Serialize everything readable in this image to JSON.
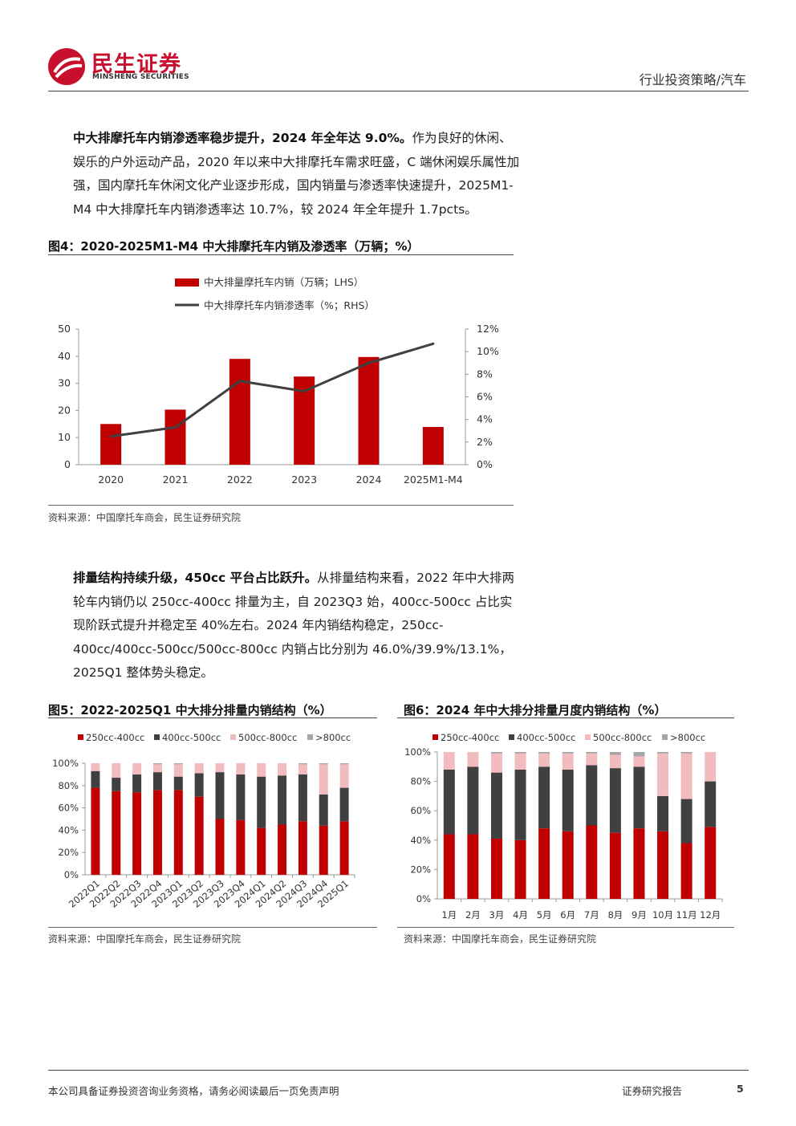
{
  "header": {
    "logo_cn": "民生证券",
    "logo_en": "MINSHENG SECURITIES",
    "category": "行业投资策略/汽车"
  },
  "para1": {
    "bold": "中大排摩托车内销渗透率稳步提升，2024 年全年达 9.0%。",
    "text": "作为良好的休闲、娱乐的户外运动产品，2020 年以来中大排摩托车需求旺盛，C 端休闲娱乐属性加强，国内摩托车休闲文化产业逐步形成，国内销量与渗透率快速提升，2025M1-M4 中大排摩托车内销渗透率达 10.7%，较 2024 年全年提升 1.7pcts。"
  },
  "fig4": {
    "title": "图4：2020-2025M1-M4 中大排摩托车内销及渗透率（万辆；%）",
    "source": "资料来源：中国摩托车商会，民生证券研究院"
  },
  "para2": {
    "bold": "排量结构持续升级，450cc 平台占比跃升。",
    "text": "从排量结构来看，2022 年中大排两轮车内销仍以 250cc-400cc 排量为主，自 2023Q3 始，400cc-500cc 占比实现阶跃式提升并稳定至 40%左右。2024 年内销结构稳定，250cc-400cc/400cc-500cc/500cc-800cc 内销占比分别为 46.0%/39.9%/13.1%，2025Q1 整体势头稳定。"
  },
  "fig5": {
    "title": "图5：2022-2025Q1 中大排分排量内销结构（%）",
    "source": "资料来源：中国摩托车商会，民生证券研究院"
  },
  "fig6": {
    "title": "图6：2024 年中大排分排量月度内销结构（%）",
    "source": "资料来源：中国摩托车商会，民生证券研究院"
  },
  "footer": {
    "disclaimer": "本公司具备证券投资咨询业务资格，请务必阅读最后一页免责声明",
    "report_type": "证券研究报告",
    "page": "5"
  },
  "colors": {
    "red": "#c00000",
    "dark": "#404040",
    "pink": "#f2bcbf",
    "gray": "#a6a6a6",
    "line": "#404040"
  },
  "chart_data": [
    {
      "id": "fig4",
      "type": "bar",
      "categories": [
        "2020",
        "2021",
        "2022",
        "2023",
        "2024",
        "2025M1-M4"
      ],
      "series": [
        {
          "name": "中大排量摩托车内销（万辆；LHS）",
          "type": "bar",
          "axis": "left",
          "values": [
            15,
            20.3,
            39,
            32.5,
            39.7,
            13.9
          ]
        },
        {
          "name": "中大排摩托车内销渗透率（%；RHS）",
          "type": "line",
          "axis": "right",
          "values": [
            2.5,
            3.3,
            7.4,
            6.5,
            9.0,
            10.7
          ]
        }
      ],
      "yticks_left": [
        "0",
        "10",
        "20",
        "30",
        "40",
        "50"
      ],
      "yticks_right": [
        "0%",
        "2%",
        "4%",
        "6%",
        "8%",
        "10%",
        "12%"
      ],
      "ylim_left": [
        0,
        50
      ],
      "ylim_right": [
        0,
        12
      ],
      "legend_position": "top-center"
    },
    {
      "id": "fig5",
      "type": "bar",
      "stacked": true,
      "categories": [
        "2022Q1",
        "2022Q2",
        "2022Q3",
        "2022Q4",
        "2023Q1",
        "2023Q2",
        "2023Q3",
        "2023Q4",
        "2024Q1",
        "2024Q2",
        "2024Q3",
        "2024Q4",
        "2025Q1"
      ],
      "series": [
        {
          "name": "250cc-400cc",
          "values": [
            78,
            75,
            74,
            76,
            76,
            70,
            50,
            49,
            42,
            45,
            48,
            44,
            48
          ]
        },
        {
          "name": "400cc-500cc",
          "values": [
            15,
            12,
            16,
            16,
            12,
            21,
            42,
            41,
            46,
            44,
            42,
            28,
            30
          ]
        },
        {
          "name": "500cc-800cc",
          "values": [
            7,
            13,
            10,
            7,
            11,
            9,
            8,
            10,
            12,
            11,
            9,
            27,
            21
          ]
        },
        {
          "name": ">800cc",
          "values": [
            0,
            0,
            0,
            1,
            1,
            0,
            0,
            0,
            0,
            0,
            1,
            1,
            1
          ]
        }
      ],
      "yticks": [
        "0%",
        "20%",
        "40%",
        "60%",
        "80%",
        "100%"
      ],
      "ylim": [
        0,
        100
      ],
      "legend_position": "top-left"
    },
    {
      "id": "fig6",
      "type": "bar",
      "stacked": true,
      "categories": [
        "1月",
        "2月",
        "3月",
        "4月",
        "5月",
        "6月",
        "7月",
        "8月",
        "9月",
        "10月",
        "11月",
        "12月"
      ],
      "series": [
        {
          "name": "250cc-400cc",
          "values": [
            44,
            44,
            41,
            40,
            48,
            46,
            50,
            45,
            48,
            46,
            38,
            49
          ]
        },
        {
          "name": "400cc-500cc",
          "values": [
            44,
            46,
            45,
            48,
            42,
            42,
            41,
            44,
            42,
            24,
            30,
            31
          ]
        },
        {
          "name": "500cc-800cc",
          "values": [
            12,
            10,
            13,
            11,
            9,
            11,
            8,
            9,
            7,
            29,
            31,
            20
          ]
        },
        {
          "name": ">800cc",
          "values": [
            0,
            0,
            1,
            1,
            1,
            1,
            1,
            2,
            3,
            1,
            1,
            0
          ]
        }
      ],
      "yticks": [
        "0%",
        "20%",
        "40%",
        "60%",
        "80%",
        "100%"
      ],
      "ylim": [
        0,
        100
      ],
      "legend_position": "top-left"
    }
  ]
}
